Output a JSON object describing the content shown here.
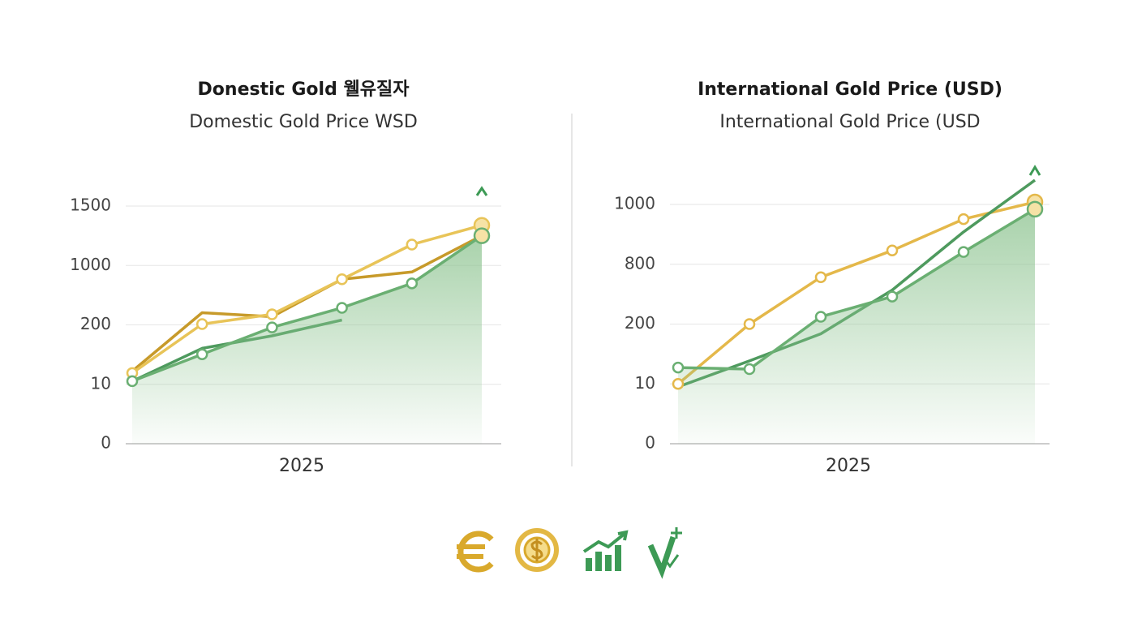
{
  "chart_data": [
    {
      "type": "line",
      "title": "Donestic Gold 웰유질자",
      "subtitle": "Domestic Gold Price WSD",
      "x_label": "2025",
      "categories": [
        null,
        null,
        null,
        null,
        null,
        null
      ],
      "ylim": [
        0,
        1500
      ],
      "yticks": [
        0,
        10,
        200,
        1000,
        1500
      ],
      "grid": true,
      "series": [
        {
          "color": "#c79a2a",
          "values": [
            52,
            364,
            310,
            814,
            912,
            1250
          ],
          "markers": false,
          "area": false
        },
        {
          "color": "#4e9a5e",
          "values": [
            20,
            125,
            165,
            266,
            null,
            null
          ],
          "markers": false,
          "area": false
        },
        {
          "color": "#e8c458",
          "values": [
            46,
            211,
            342,
            814,
            1176,
            1338
          ],
          "markers": true,
          "area": false
        },
        {
          "color": "#6aaf72",
          "values": [
            20,
            106,
            192,
            430,
            759,
            1250
          ],
          "markers": true,
          "area": true
        }
      ]
    },
    {
      "type": "line",
      "title": "International Gold Price (USD)",
      "subtitle": "International Gold Price (USD",
      "x_label": "2025",
      "categories": [
        null,
        null,
        null,
        null,
        null,
        null
      ],
      "ylim": [
        0,
        1100
      ],
      "yticks": [
        0,
        10,
        200,
        800,
        1000
      ],
      "grid": true,
      "series": [
        {
          "color": "#e4b84a",
          "values": [
            10,
            200,
            670,
            846,
            951,
            1008
          ],
          "markers": true,
          "area": false
        },
        {
          "color": "#4e9a5e",
          "values": [
            9.5,
            83,
            169,
            541,
            908,
            1081
          ],
          "markers": false,
          "area": false
        },
        {
          "color": "#6aaf72",
          "values": [
            62,
            57,
            273,
            476,
            841,
            984
          ],
          "markers": true,
          "area": true
        }
      ]
    }
  ]
}
